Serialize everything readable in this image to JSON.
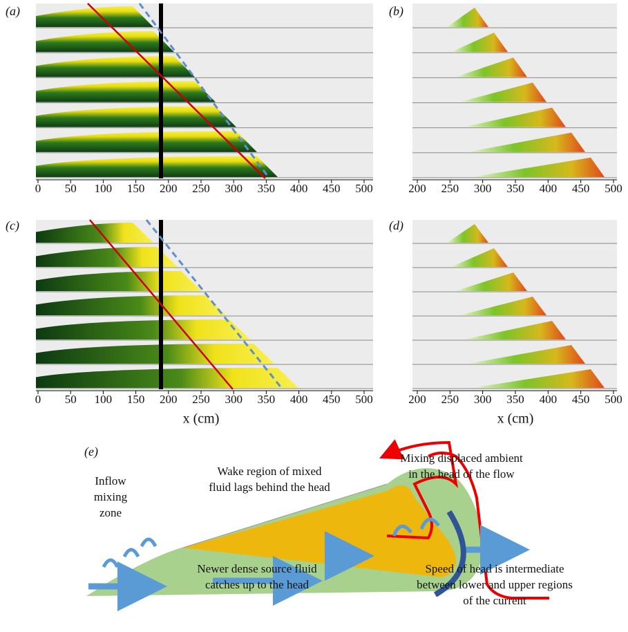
{
  "panels": [
    {
      "label": "(a)",
      "xlim": [
        0,
        500
      ],
      "xticks": [
        0,
        50,
        100,
        150,
        200,
        250,
        300,
        350,
        400,
        450,
        500
      ]
    },
    {
      "label": "(b)",
      "xlim": [
        200,
        500
      ],
      "xticks": [
        200,
        250,
        300,
        350,
        400,
        450,
        500
      ]
    },
    {
      "label": "(c)",
      "xlim": [
        0,
        500
      ],
      "xticks": [
        0,
        50,
        100,
        150,
        200,
        250,
        300,
        350,
        400,
        450,
        500
      ],
      "xlabel": "x (cm)"
    },
    {
      "label": "(d)",
      "xlim": [
        200,
        500
      ],
      "xticks": [
        200,
        250,
        300,
        350,
        400,
        450,
        500
      ],
      "xlabel": "x (cm)"
    }
  ],
  "diagram": {
    "label": "(e)",
    "inflow": [
      "Inflow",
      "mixing",
      "zone"
    ],
    "wake": [
      "Wake region of mixed",
      "fluid lags behind the head"
    ],
    "head_mixing": [
      "Mixing displaced ambient",
      "in the head of the flow"
    ],
    "source": [
      "Newer dense source fluid",
      "catches up to the head"
    ],
    "speed": [
      "Speed of head is intermediate",
      "between lower and upper regions",
      "of the current"
    ]
  }
}
